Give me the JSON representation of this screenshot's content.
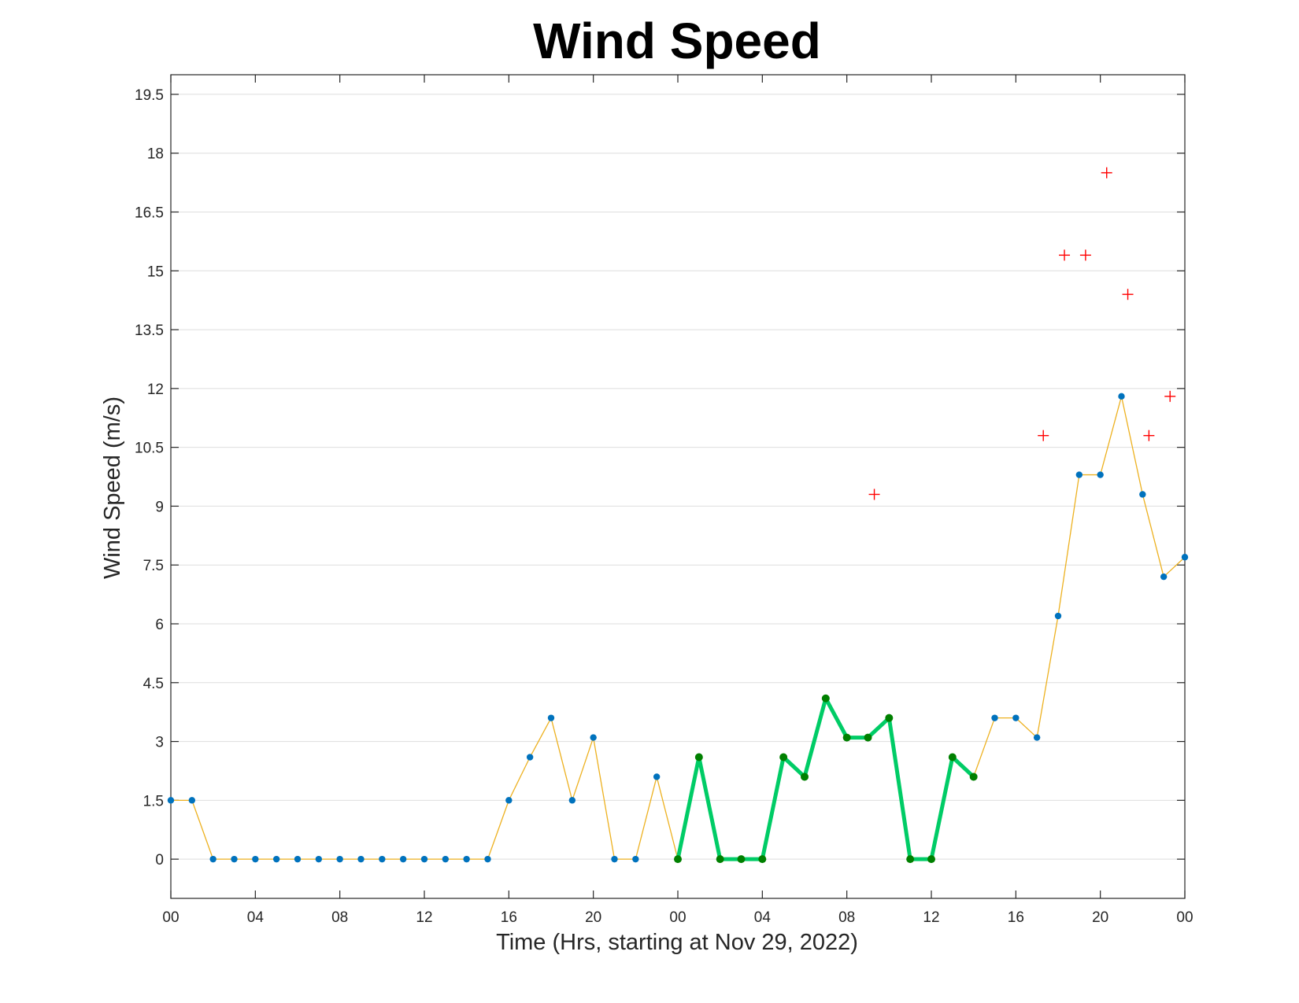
{
  "chart_data": {
    "type": "line",
    "title": "Wind Speed",
    "xlabel": "Time (Hrs, starting at Nov 29, 2022)",
    "ylabel": "Wind Speed (m/s)",
    "xlim": [
      0,
      48
    ],
    "ylim": [
      -1,
      20
    ],
    "grid": true,
    "x_ticks": [
      0,
      4,
      8,
      12,
      16,
      20,
      24,
      28,
      32,
      36,
      40,
      44,
      48
    ],
    "x_tick_labels": [
      "00",
      "04",
      "08",
      "12",
      "16",
      "20",
      "00",
      "04",
      "08",
      "12",
      "16",
      "20",
      "00"
    ],
    "y_ticks": [
      0,
      1.5,
      3,
      4.5,
      6,
      7.5,
      9,
      10.5,
      12,
      13.5,
      15,
      16.5,
      18,
      19.5
    ],
    "y_tick_labels": [
      "0",
      "1.5",
      "3",
      "4.5",
      "6",
      "7.5",
      "9",
      "10.5",
      "12",
      "13.5",
      "15",
      "16.5",
      "18",
      "19.5"
    ],
    "series": [
      {
        "style": "thin yellow line with blue dots",
        "color": "#edb120",
        "marker_color": "#0072bd",
        "x": [
          0,
          1,
          2,
          3,
          4,
          5,
          6,
          7,
          8,
          9,
          10,
          11,
          12,
          13,
          14,
          15,
          16,
          17,
          18,
          19,
          20,
          21,
          22,
          23,
          24,
          25,
          26,
          27,
          28,
          29,
          30,
          31,
          32,
          33,
          34,
          35,
          36,
          37,
          38,
          39,
          40,
          41,
          42,
          43,
          44,
          45,
          46,
          47,
          48
        ],
        "values": [
          1.5,
          1.5,
          0,
          0,
          0,
          0,
          0,
          0,
          0,
          0,
          0,
          0,
          0,
          0,
          0,
          0,
          1.5,
          2.6,
          3.6,
          1.5,
          3.1,
          0,
          0,
          2.1,
          0,
          2.6,
          0,
          0,
          0,
          2.6,
          2.1,
          4.1,
          3.1,
          3.1,
          3.6,
          0,
          0,
          2.6,
          2.1,
          3.6,
          3.6,
          3.1,
          6.2,
          9.8,
          9.8,
          11.8,
          9.3,
          7.2,
          7.7
        ]
      },
      {
        "style": "thick green line with dark green dots",
        "color": "#00cc66",
        "marker_color": "#008000",
        "x": [
          24,
          25,
          26,
          27,
          28,
          29,
          30,
          31,
          32,
          33,
          34,
          35,
          36,
          37,
          38
        ],
        "values": [
          0,
          2.6,
          0,
          0,
          0,
          2.6,
          2.1,
          4.1,
          3.1,
          3.1,
          3.6,
          0,
          0,
          2.6,
          2.1
        ]
      },
      {
        "style": "red plus markers",
        "color": "#ff0000",
        "x": [
          33.3,
          41.3,
          42.3,
          43.3,
          44.3,
          45.3,
          46.3,
          47.3
        ],
        "values": [
          9.3,
          10.8,
          15.4,
          15.4,
          17.5,
          14.4,
          10.8,
          11.8
        ]
      }
    ]
  }
}
